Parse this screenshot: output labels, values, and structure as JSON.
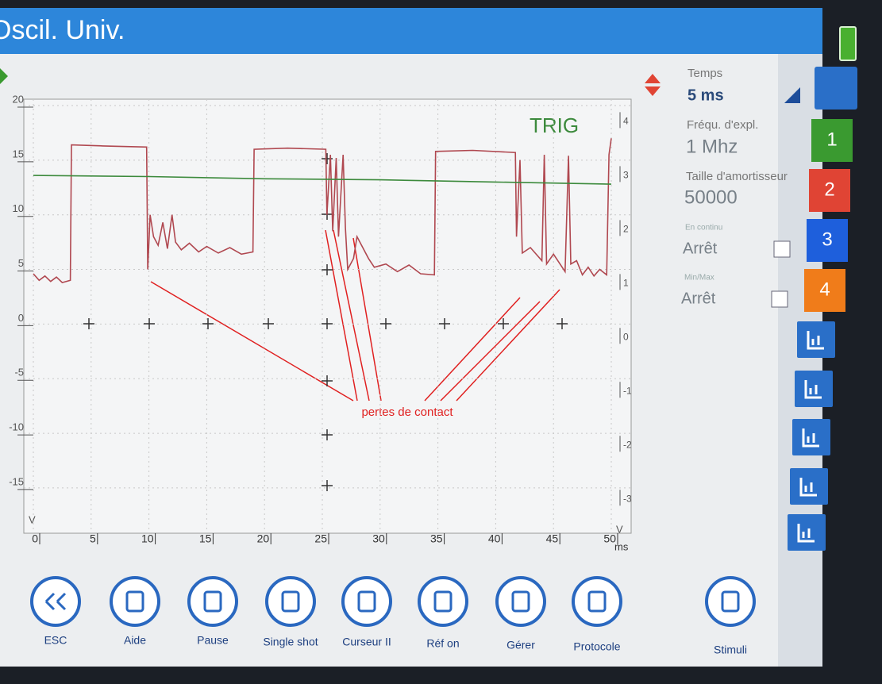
{
  "header": {
    "title": "Oscil. Univ."
  },
  "chart_data": {
    "type": "line",
    "xlim": [
      0,
      50
    ],
    "xticks": [
      0,
      5,
      10,
      15,
      20,
      25,
      30,
      35,
      40,
      45,
      50
    ],
    "xlabel": "ms",
    "ylim": [
      -19,
      20
    ],
    "yticks": [
      20,
      15,
      10,
      5,
      0,
      -5,
      -10,
      -15
    ],
    "ylabel": "V",
    "y2lim": [
      -3.6,
      4.3
    ],
    "y2ticks": [
      4,
      3,
      2,
      1,
      0,
      -1,
      -2,
      -3
    ],
    "y2label": "V",
    "grid": true,
    "annotations": [
      "TRIG",
      "pertes de contact"
    ],
    "series": [
      {
        "color": "#b04850",
        "x": [
          0,
          0.5,
          1,
          1.5,
          2,
          2.5,
          3.2,
          3.3,
          6,
          9.8,
          9.9,
          10.1,
          10.4,
          10.8,
          11.2,
          11.6,
          12,
          12.3,
          12.8,
          13.5,
          14.3,
          15,
          16,
          17,
          18,
          19,
          19.1,
          22,
          25.3,
          25.4,
          25.7,
          25.9,
          26.2,
          26.4,
          26.8,
          27,
          27.2,
          27.7,
          28,
          28.4,
          29,
          29.5,
          30.5,
          31.5,
          32.5,
          33.5,
          34.7,
          34.8,
          38,
          41.7,
          41.8,
          42.1,
          42.3,
          43,
          44,
          44.2,
          44.4,
          45,
          46,
          46.3,
          46.5,
          47,
          47.5,
          48,
          48.5,
          49,
          49.6,
          49.8,
          50
        ],
        "values": [
          4.6,
          4,
          4.4,
          3.9,
          4.3,
          3.8,
          4,
          16.4,
          16.3,
          16.2,
          5,
          10,
          8,
          7.2,
          9.3,
          6.9,
          10,
          7.5,
          6.8,
          7.4,
          6.6,
          7.1,
          6.5,
          7,
          6.4,
          6.6,
          16,
          16.1,
          16,
          10,
          15.5,
          8.5,
          15.2,
          8,
          15.5,
          8.8,
          5,
          6,
          8,
          7.2,
          6,
          5.2,
          5.5,
          4.8,
          5.4,
          4.6,
          4.5,
          15.8,
          15.9,
          15.7,
          8,
          15,
          6.5,
          7,
          5.8,
          15.5,
          5.5,
          6.4,
          4.8,
          15.4,
          5.5,
          5.8,
          4.5,
          5.2,
          4.4,
          5,
          4.5,
          15.5,
          17
        ]
      },
      {
        "color": "#3c8a3c",
        "x": [
          0,
          10,
          20,
          30,
          40,
          50
        ],
        "values": [
          13.6,
          13.5,
          13.3,
          13.2,
          13,
          12.8
        ]
      }
    ]
  },
  "settings": [
    {
      "label": "Temps",
      "value": "5 ms"
    },
    {
      "label": "Fréqu. d'expl.",
      "value": "1 Mhz"
    },
    {
      "label": "Taille d'amortisseur",
      "value": "50000"
    },
    {
      "label": "En continu",
      "value": "Arrêt"
    },
    {
      "label": "Min/Max",
      "value": "Arrêt"
    }
  ],
  "channels": [
    "1",
    "2",
    "3",
    "4"
  ],
  "toolbar": [
    "ESC",
    "Aide",
    "Pause",
    "Single shot",
    "Curseur II",
    "Réf on",
    "Gérer",
    "Protocole",
    "Stimuli"
  ]
}
